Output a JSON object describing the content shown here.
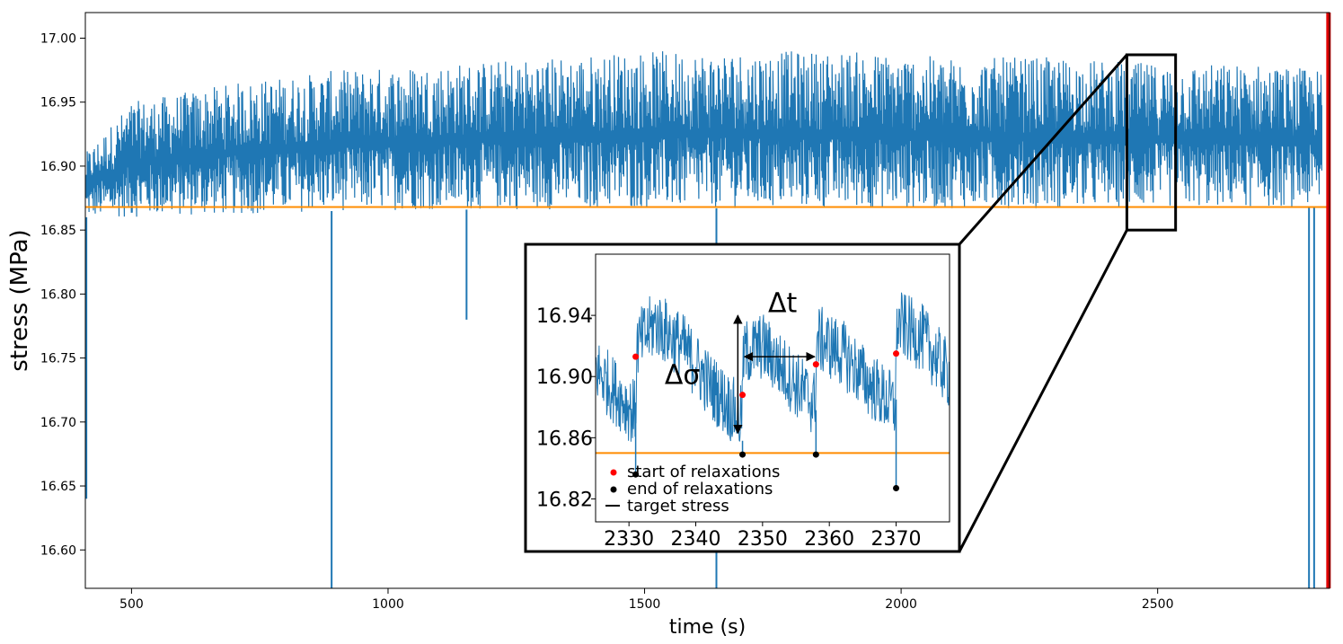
{
  "chart_data": [
    {
      "type": "line",
      "xlabel": "time (s)",
      "ylabel": "stress (MPa)",
      "xlim": [
        410,
        2835
      ],
      "ylim": [
        16.57,
        17.02
      ],
      "xticks": [
        "500",
        "1000",
        "1500",
        "2000",
        "2500"
      ],
      "xtick_values": [
        500,
        1000,
        1500,
        2000,
        2500
      ],
      "yticks": [
        "16.60",
        "16.65",
        "16.70",
        "16.75",
        "16.80",
        "16.85",
        "16.90",
        "16.95",
        "17.00"
      ],
      "ytick_values": [
        16.6,
        16.65,
        16.7,
        16.75,
        16.8,
        16.85,
        16.9,
        16.95,
        17.0
      ],
      "grid": false,
      "colors": {
        "stress": "#1f77b4",
        "target": "#ff8c00",
        "end_marker": "#e00000"
      },
      "series": [
        {
          "kind": "noisy-band",
          "envelope": {
            "x": [
              410,
              500,
              700,
              900,
              1100,
              1300,
              1500,
              1700,
              1900,
              2100,
              2300,
              2500,
              2700,
              2820
            ],
            "low": [
              16.86,
              16.86,
              16.862,
              16.865,
              16.866,
              16.866,
              16.867,
              16.867,
              16.867,
              16.867,
              16.867,
              16.868,
              16.868,
              16.868
            ],
            "high": [
              16.91,
              16.95,
              16.965,
              16.975,
              16.98,
              16.985,
              16.99,
              16.99,
              16.99,
              16.985,
              16.985,
              16.98,
              16.98,
              16.975
            ]
          },
          "drops": [
            {
              "x": 412,
              "y": 16.64
            },
            {
              "x": 890,
              "y": 16.57
            },
            {
              "x": 1153,
              "y": 16.78
            },
            {
              "x": 1640,
              "y": 16.57
            },
            {
              "x": 2795,
              "y": 16.57
            },
            {
              "x": 2805,
              "y": 16.57
            }
          ]
        },
        {
          "kind": "hline",
          "y": 16.868
        },
        {
          "kind": "vline",
          "x": 2833
        }
      ],
      "zoom_box": {
        "x": [
          2440,
          2535
        ],
        "y": [
          16.85,
          16.987
        ]
      }
    },
    {
      "type": "line",
      "xlim": [
        2325,
        2378
      ],
      "ylim": [
        16.805,
        16.98
      ],
      "xticks": [
        "2330",
        "2340",
        "2350",
        "2360",
        "2370"
      ],
      "xtick_values": [
        2330,
        2340,
        2350,
        2360,
        2370
      ],
      "yticks": [
        "16.82",
        "16.86",
        "16.90",
        "16.94"
      ],
      "ytick_values": [
        16.82,
        16.86,
        16.9,
        16.94
      ],
      "target_stress": 16.85,
      "starts": {
        "x": [
          2331,
          2347,
          2358,
          2370
        ],
        "y": [
          16.913,
          16.888,
          16.908,
          16.915
        ]
      },
      "ends": {
        "x": [
          2331,
          2347,
          2358,
          2370
        ],
        "y": [
          16.836,
          16.849,
          16.849,
          16.827
        ]
      },
      "cycle_points": {
        "x": [
          2325,
          2328,
          2331,
          2331.2,
          2334,
          2338,
          2342,
          2346.8,
          2347.2,
          2350,
          2354,
          2357.8,
          2358.2,
          2362,
          2366,
          2369.8,
          2370.2,
          2374,
          2378
        ],
        "y": [
          16.905,
          16.89,
          16.875,
          16.92,
          16.935,
          16.92,
          16.895,
          16.872,
          16.915,
          16.92,
          16.9,
          16.882,
          16.925,
          16.915,
          16.895,
          16.88,
          16.935,
          16.925,
          16.9
        ]
      },
      "annotations": [
        {
          "text": "Δt",
          "x": 2353,
          "y": 16.942
        },
        {
          "text": "Δσ",
          "x": 2338,
          "y": 16.895
        }
      ],
      "legend": {
        "placement": "lower-left",
        "entries": [
          "start of relaxations",
          "end of relaxations",
          "target stress"
        ]
      }
    }
  ]
}
